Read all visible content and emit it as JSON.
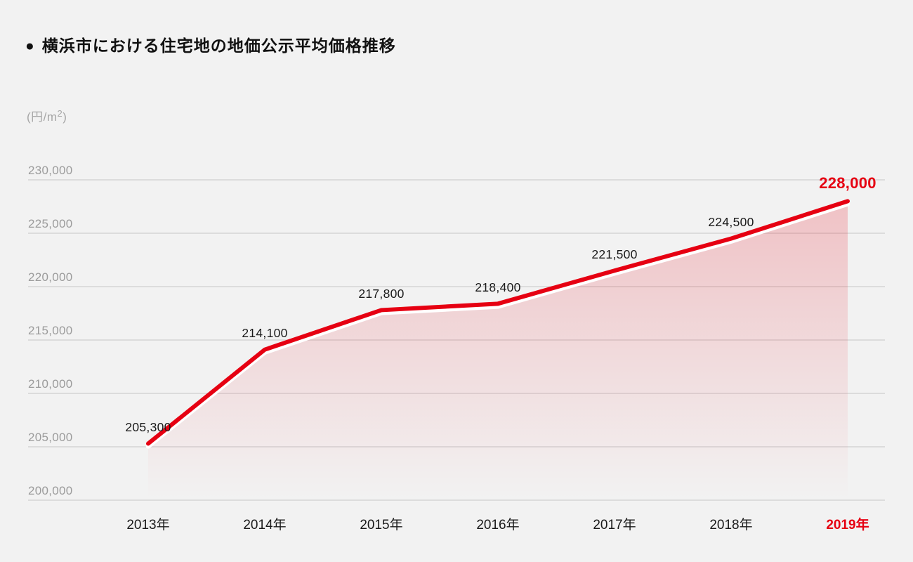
{
  "title": {
    "bullet": "●",
    "text": "横浜市における住宅地の地価公示平均価格推移"
  },
  "unit": {
    "prefix": "(円/m",
    "sup": "2",
    "suffix": ")"
  },
  "colors": {
    "background": "#f2f2f2",
    "accent_red": "#e60012",
    "line_understroke": "#ffffff",
    "gridline": "#dcdcdc",
    "axis_text_gray": "#9b9b9b",
    "label_text_black": "#1a1a1a",
    "area_fill_top": "rgba(230,0,18,0.20)",
    "area_fill_bottom": "rgba(230,0,18,0)"
  },
  "chart_data": {
    "type": "area",
    "title": "横浜市における住宅地の地価公示平均価格推移",
    "ylabel": "(円/m2)",
    "xlabel": "",
    "grid": "horizontal",
    "legend": "none",
    "ylim": [
      200000,
      230000
    ],
    "y_tick_step": 5000,
    "y_ticks": [
      {
        "value": 200000,
        "label": "200,000"
      },
      {
        "value": 205000,
        "label": "205,000"
      },
      {
        "value": 210000,
        "label": "210,000"
      },
      {
        "value": 215000,
        "label": "215,000"
      },
      {
        "value": 220000,
        "label": "220,000"
      },
      {
        "value": 225000,
        "label": "225,000"
      },
      {
        "value": 230000,
        "label": "230,000"
      }
    ],
    "categories": [
      "2013年",
      "2014年",
      "2015年",
      "2016年",
      "2017年",
      "2018年",
      "2019年"
    ],
    "values": [
      205300,
      214100,
      217800,
      218400,
      221500,
      224500,
      228000
    ],
    "value_labels": [
      "205,300",
      "214,100",
      "217,800",
      "218,400",
      "221,500",
      "224,500",
      "228,000"
    ],
    "highlight_last_point": true
  }
}
